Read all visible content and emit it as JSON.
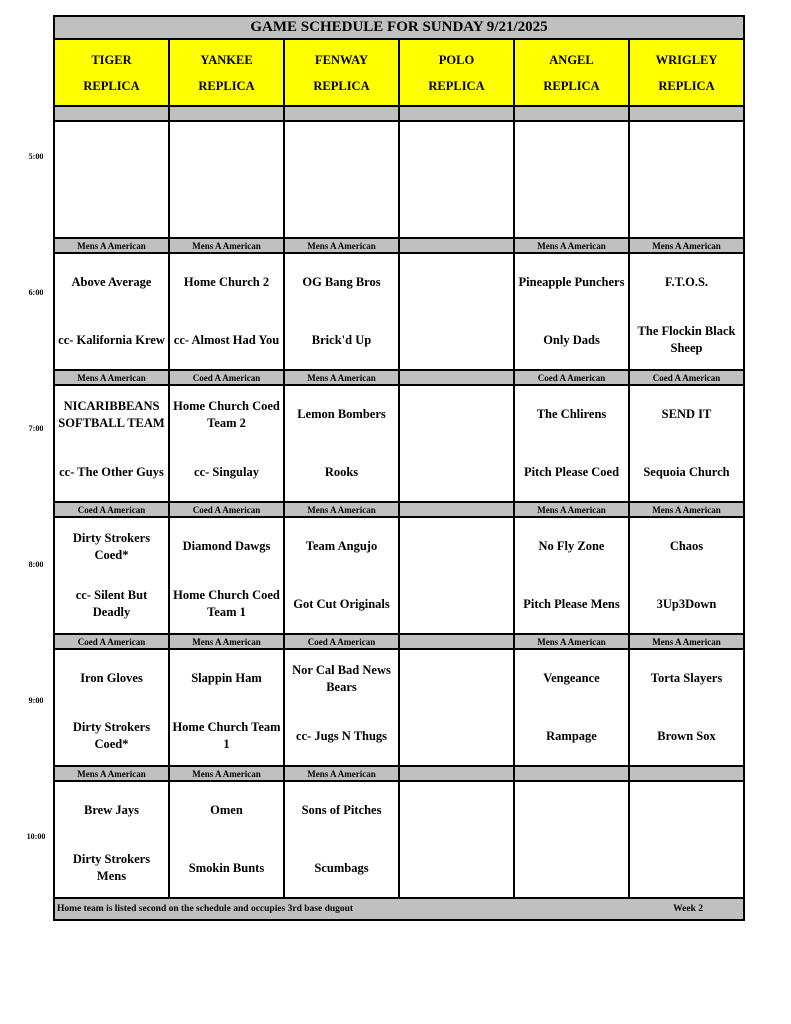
{
  "title": "GAME SCHEDULE FOR SUNDAY 9/21/2025",
  "fields": [
    {
      "name": "TIGER",
      "sub": "REPLICA"
    },
    {
      "name": "YANKEE",
      "sub": "REPLICA"
    },
    {
      "name": "FENWAY",
      "sub": "REPLICA"
    },
    {
      "name": "POLO",
      "sub": "REPLICA"
    },
    {
      "name": "ANGEL",
      "sub": "REPLICA"
    },
    {
      "name": "WRIGLEY",
      "sub": "REPLICA"
    }
  ],
  "slots": [
    {
      "time": "5:00",
      "divisions": [
        "",
        "",
        "",
        "",
        "",
        ""
      ],
      "games": [
        {
          "away": "",
          "home": ""
        },
        {
          "away": "",
          "home": ""
        },
        {
          "away": "",
          "home": ""
        },
        {
          "away": "",
          "home": ""
        },
        {
          "away": "",
          "home": ""
        },
        {
          "away": "",
          "home": ""
        }
      ]
    },
    {
      "time": "6:00",
      "divisions": [
        "Mens A American",
        "Mens A American",
        "Mens A American",
        "",
        "Mens A American",
        "Mens A American"
      ],
      "games": [
        {
          "away": "Above Average",
          "home": "cc- Kalifornia Krew"
        },
        {
          "away": "Home Church 2",
          "home": "cc- Almost Had You"
        },
        {
          "away": "OG Bang Bros",
          "home": "Brick'd Up"
        },
        {
          "away": "",
          "home": ""
        },
        {
          "away": "Pineapple Punchers",
          "home": "Only Dads"
        },
        {
          "away": "F.T.O.S.",
          "home": "The Flockin Black Sheep"
        }
      ]
    },
    {
      "time": "7:00",
      "divisions": [
        "Mens A American",
        "Coed A American",
        "Mens A American",
        "",
        "Coed A American",
        "Coed A American"
      ],
      "games": [
        {
          "away": "NICARIBBEANS SOFTBALL TEAM",
          "home": "cc- The Other Guys"
        },
        {
          "away": "Home Church Coed Team 2",
          "home": "cc- Singulay"
        },
        {
          "away": "Lemon Bombers",
          "home": "Rooks"
        },
        {
          "away": "",
          "home": ""
        },
        {
          "away": "The Chlirens",
          "home": "Pitch Please Coed"
        },
        {
          "away": "SEND IT",
          "home": "Sequoia Church"
        }
      ]
    },
    {
      "time": "8:00",
      "divisions": [
        "Coed A American",
        "Coed A American",
        "Mens A American",
        "",
        "Mens A American",
        "Mens A American"
      ],
      "games": [
        {
          "away": "Dirty Strokers Coed*",
          "home": "cc- Silent But Deadly"
        },
        {
          "away": "Diamond Dawgs",
          "home": "Home Church Coed Team 1"
        },
        {
          "away": "Team Angujo",
          "home": "Got Cut Originals"
        },
        {
          "away": "",
          "home": ""
        },
        {
          "away": "No Fly Zone",
          "home": "Pitch Please Mens"
        },
        {
          "away": "Chaos",
          "home": "3Up3Down"
        }
      ]
    },
    {
      "time": "9:00",
      "divisions": [
        "Coed A American",
        "Mens A American",
        "Coed A American",
        "",
        "Mens A American",
        "Mens A American"
      ],
      "games": [
        {
          "away": "Iron Gloves",
          "home": "Dirty Strokers Coed*"
        },
        {
          "away": "Slappin Ham",
          "home": "Home Church Team 1"
        },
        {
          "away": "Nor Cal Bad News Bears",
          "home": "cc- Jugs N Thugs"
        },
        {
          "away": "",
          "home": ""
        },
        {
          "away": "Vengeance",
          "home": "Rampage"
        },
        {
          "away": "Torta Slayers",
          "home": "Brown Sox"
        }
      ]
    },
    {
      "time": "10:00",
      "divisions": [
        "Mens A American",
        "Mens A American",
        "Mens A American",
        "",
        "",
        ""
      ],
      "games": [
        {
          "away": "Brew Jays",
          "home": "Dirty Strokers Mens"
        },
        {
          "away": "Omen",
          "home": "Smokin Bunts"
        },
        {
          "away": "Sons of Pitches",
          "home": "Scumbags"
        },
        {
          "away": "",
          "home": ""
        },
        {
          "away": "",
          "home": ""
        },
        {
          "away": "",
          "home": ""
        }
      ]
    }
  ],
  "footer": {
    "note": "Home team is listed second on the schedule and occupies 3rd base dugout",
    "week": "Week 2"
  },
  "colors": {
    "header": "#ffff00",
    "divider": "#c0c0c0",
    "border": "#000000"
  }
}
